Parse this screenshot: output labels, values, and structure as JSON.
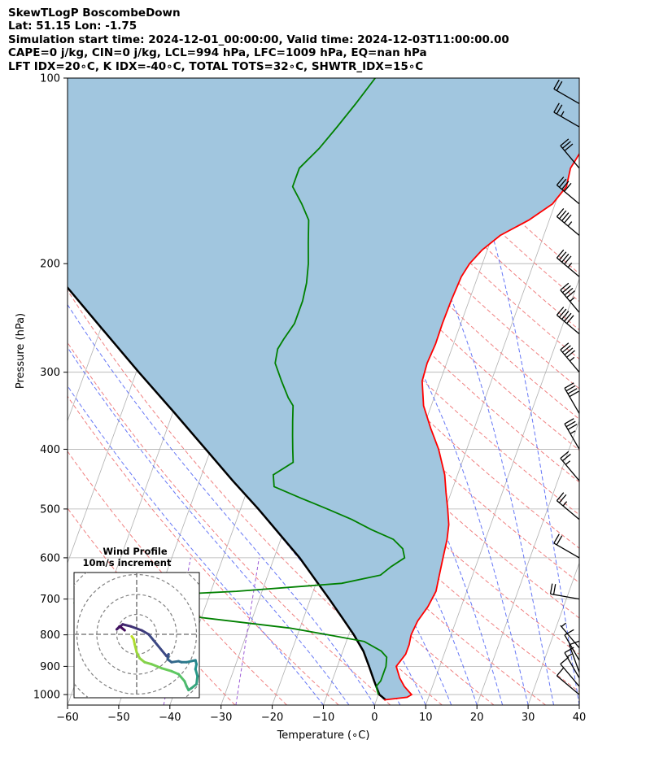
{
  "title_lines": [
    "SkewTLogP BoscombeDown",
    "Lat: 51.15   Lon: -1.75",
    "Simulation start time: 2024-12-01_00:00:00, Valid time: 2024-12-03T11:00:00.00",
    "CAPE=0 j/kg, CIN=0 j/kg, LCL=994 hPa, LFC=1009 hPa, EQ=nan hPa",
    "LFT IDX=20∘C, K IDX=-40∘C, TOTAL TOTS=32∘C, SHWTR_IDX=15∘C"
  ],
  "chart_data": {
    "type": "skew-t log-p",
    "xlabel": "Temperature ($^\\circ$C)",
    "ylabel": "Pressure (hPa)",
    "xlim": [
      -60,
      40
    ],
    "ylim": [
      1040,
      100
    ],
    "x_ticks": [
      -60,
      -50,
      -40,
      -30,
      -20,
      -10,
      0,
      10,
      20,
      30,
      40
    ],
    "x_tick_labels": [
      "−60",
      "−50",
      "−40",
      "−30",
      "−20",
      "−10",
      "0",
      "10",
      "20",
      "30",
      "40"
    ],
    "y_ticks": [
      100,
      200,
      300,
      400,
      500,
      600,
      700,
      800,
      900,
      1000
    ],
    "log_y": true,
    "grid": true,
    "colors": {
      "temperature": "#ff0000",
      "dewpoint": "#008000",
      "parcel": "#000000",
      "shade": "#a1c6df",
      "dry_adiabat": "#f08080",
      "moist_adiabat": "#4a5ef5",
      "mixing_ratio": "#9b59d6",
      "isotherm": "#b0b0b0"
    },
    "temperature": [
      [
        1020,
        1.5
      ],
      [
        1010,
        5.8
      ],
      [
        1000,
        6.5
      ],
      [
        970,
        4.5
      ],
      [
        940,
        3.0
      ],
      [
        900,
        1.5
      ],
      [
        860,
        2.5
      ],
      [
        830,
        2.5
      ],
      [
        800,
        2.2
      ],
      [
        760,
        2.5
      ],
      [
        720,
        3.5
      ],
      [
        680,
        4.0
      ],
      [
        640,
        3.5
      ],
      [
        600,
        3.0
      ],
      [
        560,
        2.5
      ],
      [
        530,
        1.8
      ],
      [
        500,
        0.5
      ],
      [
        470,
        -1.0
      ],
      [
        440,
        -2.5
      ],
      [
        400,
        -5.5
      ],
      [
        370,
        -8.5
      ],
      [
        340,
        -11.5
      ],
      [
        310,
        -13.5
      ],
      [
        290,
        -13.8
      ],
      [
        270,
        -13.5
      ],
      [
        250,
        -13.6
      ],
      [
        230,
        -13.5
      ],
      [
        210,
        -13.2
      ],
      [
        200,
        -12.5
      ],
      [
        190,
        -11.0
      ],
      [
        180,
        -8.5
      ],
      [
        170,
        -4.0
      ],
      [
        160,
        -0.5
      ],
      [
        150,
        1.0
      ],
      [
        140,
        0.5
      ],
      [
        130,
        1.5
      ],
      [
        120,
        4.0
      ],
      [
        110,
        7.5
      ],
      [
        100,
        12.0
      ]
    ],
    "dewpoint": [
      [
        1000,
        0.0
      ],
      [
        970,
        -1.0
      ],
      [
        950,
        -0.5
      ],
      [
        900,
        -0.5
      ],
      [
        870,
        -1.0
      ],
      [
        850,
        -2.5
      ],
      [
        820,
        -6.5
      ],
      [
        800,
        -14.0
      ],
      [
        780,
        -22.0
      ],
      [
        760,
        -34.0
      ],
      [
        750,
        -40.0
      ],
      [
        740,
        -44.0
      ],
      [
        730,
        -55.0
      ],
      [
        720,
        -62.0
      ],
      [
        710,
        -66.0
      ],
      [
        700,
        -60.0
      ],
      [
        690,
        -50.0
      ],
      [
        680,
        -35.0
      ],
      [
        660,
        -15.0
      ],
      [
        640,
        -8.0
      ],
      [
        620,
        -6.5
      ],
      [
        600,
        -4.5
      ],
      [
        580,
        -5.5
      ],
      [
        560,
        -8.0
      ],
      [
        540,
        -13.0
      ],
      [
        520,
        -17.5
      ],
      [
        500,
        -23.0
      ],
      [
        480,
        -29.0
      ],
      [
        460,
        -35.0
      ],
      [
        440,
        -36.0
      ],
      [
        420,
        -33.0
      ],
      [
        400,
        -34.0
      ],
      [
        380,
        -35.0
      ],
      [
        360,
        -36.0
      ],
      [
        340,
        -37.0
      ],
      [
        330,
        -38.5
      ],
      [
        310,
        -41.0
      ],
      [
        290,
        -43.5
      ],
      [
        275,
        -44.0
      ],
      [
        265,
        -43.5
      ],
      [
        250,
        -42.5
      ],
      [
        230,
        -42.5
      ],
      [
        215,
        -43.0
      ],
      [
        200,
        -44.0
      ],
      [
        185,
        -45.5
      ],
      [
        170,
        -47.0
      ],
      [
        160,
        -49.5
      ],
      [
        150,
        -52.5
      ],
      [
        140,
        -52.5
      ],
      [
        130,
        -50.0
      ],
      [
        120,
        -48.0
      ],
      [
        110,
        -46.0
      ],
      [
        100,
        -44.0
      ]
    ],
    "parcel": [
      [
        1020,
        1.8
      ],
      [
        1000,
        0.2
      ],
      [
        980,
        -0.6
      ],
      [
        950,
        -1.8
      ],
      [
        900,
        -3.8
      ],
      [
        850,
        -6.0
      ],
      [
        800,
        -9.0
      ],
      [
        750,
        -12.5
      ],
      [
        700,
        -16.3
      ],
      [
        650,
        -20.5
      ],
      [
        600,
        -25.0
      ],
      [
        550,
        -30.5
      ],
      [
        500,
        -36.5
      ],
      [
        450,
        -43.5
      ],
      [
        400,
        -51.0
      ],
      [
        350,
        -59.5
      ],
      [
        300,
        -69.5
      ],
      [
        250,
        -81.0
      ],
      [
        200,
        -95.0
      ],
      [
        150,
        -112.0
      ],
      [
        100,
        -135.0
      ]
    ],
    "wind_barbs": [
      [
        1000,
        10,
        310
      ],
      [
        970,
        12,
        320
      ],
      [
        940,
        15,
        330
      ],
      [
        920,
        14,
        340
      ],
      [
        880,
        12,
        330
      ],
      [
        840,
        8,
        320
      ],
      [
        700,
        20,
        280
      ],
      [
        600,
        22,
        300
      ],
      [
        520,
        25,
        310
      ],
      [
        450,
        28,
        320
      ],
      [
        400,
        38,
        330
      ],
      [
        350,
        42,
        330
      ],
      [
        300,
        48,
        320
      ],
      [
        260,
        50,
        310
      ],
      [
        240,
        48,
        320
      ],
      [
        210,
        45,
        310
      ],
      [
        180,
        45,
        310
      ],
      [
        160,
        40,
        310
      ],
      [
        140,
        30,
        320
      ],
      [
        120,
        25,
        300
      ],
      [
        110,
        20,
        300
      ]
    ],
    "hodograph": {
      "title_lines": [
        "Wind Profile",
        "10m/s increment"
      ],
      "rings": 3,
      "points": [
        [
          -0.5,
          -0.2
        ],
        [
          -0.3,
          -0.5
        ],
        [
          -0.2,
          -1.0
        ],
        [
          0.0,
          -1.8
        ],
        [
          0.3,
          -2.4
        ],
        [
          0.8,
          -2.8
        ],
        [
          1.5,
          -3.0
        ],
        [
          2.5,
          -3.4
        ],
        [
          3.5,
          -3.7
        ],
        [
          4.2,
          -4.0
        ],
        [
          4.8,
          -4.7
        ],
        [
          5.0,
          -5.2
        ],
        [
          5.2,
          -5.6
        ],
        [
          5.5,
          -5.4
        ],
        [
          6.0,
          -5.0
        ],
        [
          6.1,
          -4.2
        ],
        [
          5.9,
          -3.5
        ],
        [
          6.0,
          -3.0
        ],
        [
          5.9,
          -2.6
        ],
        [
          5.0,
          -2.8
        ],
        [
          4.5,
          -2.8
        ],
        [
          4.2,
          -2.7
        ],
        [
          3.5,
          -2.8
        ],
        [
          3.1,
          -2.5
        ],
        [
          3.2,
          -2.0
        ],
        [
          3.0,
          -2.2
        ],
        [
          1.2,
          0.0
        ],
        [
          0.5,
          0.4
        ],
        [
          -0.6,
          0.8
        ],
        [
          -1.4,
          1.0
        ],
        [
          -2.0,
          0.5
        ],
        [
          -1.7,
          0.8
        ],
        [
          -1.2,
          0.4
        ]
      ]
    }
  }
}
